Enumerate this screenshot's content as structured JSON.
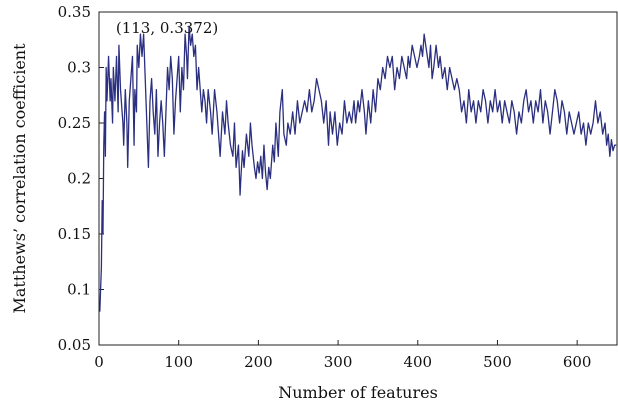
{
  "chart_data": {
    "type": "line",
    "title": "",
    "xlabel": "Number of features",
    "ylabel": "Matthews’ correlation coefficient",
    "xlim": [
      0,
      650
    ],
    "ylim": [
      0.05,
      0.35
    ],
    "x_ticks": [
      0,
      100,
      200,
      300,
      400,
      500,
      600
    ],
    "y_ticks": [
      0.05,
      0.1,
      0.15,
      0.2,
      0.25,
      0.3,
      0.35
    ],
    "y_tick_labels": [
      "0.05",
      "0.1",
      "0.15",
      "0.2",
      "0.25",
      "0.3",
      "0.35"
    ],
    "grid": false,
    "legend": "none",
    "line_color": "#2b2f7f",
    "annotation": {
      "text": "(113, 0.3372)",
      "x": 113,
      "y": 0.3372
    },
    "series": [
      {
        "points": [
          [
            1,
            0.08
          ],
          [
            2,
            0.1
          ],
          [
            3,
            0.12
          ],
          [
            4,
            0.18
          ],
          [
            5,
            0.15
          ],
          [
            6,
            0.23
          ],
          [
            7,
            0.26
          ],
          [
            8,
            0.22
          ],
          [
            9,
            0.3
          ],
          [
            10,
            0.27
          ],
          [
            12,
            0.31
          ],
          [
            14,
            0.27
          ],
          [
            15,
            0.29
          ],
          [
            17,
            0.25
          ],
          [
            18,
            0.3
          ],
          [
            20,
            0.27
          ],
          [
            22,
            0.31
          ],
          [
            24,
            0.26
          ],
          [
            25,
            0.32
          ],
          [
            27,
            0.28
          ],
          [
            28,
            0.27
          ],
          [
            30,
            0.25
          ],
          [
            31,
            0.23
          ],
          [
            33,
            0.28
          ],
          [
            35,
            0.25
          ],
          [
            36,
            0.21
          ],
          [
            38,
            0.27
          ],
          [
            40,
            0.29
          ],
          [
            42,
            0.31
          ],
          [
            44,
            0.23
          ],
          [
            45,
            0.28
          ],
          [
            47,
            0.26
          ],
          [
            48,
            0.32
          ],
          [
            50,
            0.3
          ],
          [
            52,
            0.33
          ],
          [
            54,
            0.31
          ],
          [
            56,
            0.33
          ],
          [
            58,
            0.29
          ],
          [
            59,
            0.27
          ],
          [
            60,
            0.25
          ],
          [
            62,
            0.21
          ],
          [
            64,
            0.27
          ],
          [
            66,
            0.29
          ],
          [
            68,
            0.26
          ],
          [
            70,
            0.24
          ],
          [
            72,
            0.28
          ],
          [
            74,
            0.22
          ],
          [
            76,
            0.25
          ],
          [
            78,
            0.27
          ],
          [
            80,
            0.25
          ],
          [
            82,
            0.22
          ],
          [
            84,
            0.26
          ],
          [
            86,
            0.3
          ],
          [
            88,
            0.28
          ],
          [
            90,
            0.31
          ],
          [
            92,
            0.29
          ],
          [
            94,
            0.24
          ],
          [
            96,
            0.27
          ],
          [
            98,
            0.29
          ],
          [
            100,
            0.31
          ],
          [
            102,
            0.26
          ],
          [
            104,
            0.3
          ],
          [
            106,
            0.28
          ],
          [
            108,
            0.33
          ],
          [
            110,
            0.31
          ],
          [
            111,
            0.29
          ],
          [
            113,
            0.3372
          ],
          [
            115,
            0.32
          ],
          [
            117,
            0.33
          ],
          [
            119,
            0.31
          ],
          [
            121,
            0.32
          ],
          [
            123,
            0.28
          ],
          [
            125,
            0.3
          ],
          [
            127,
            0.28
          ],
          [
            129,
            0.26
          ],
          [
            131,
            0.28
          ],
          [
            133,
            0.27
          ],
          [
            135,
            0.25
          ],
          [
            137,
            0.28
          ],
          [
            140,
            0.26
          ],
          [
            142,
            0.24
          ],
          [
            145,
            0.28
          ],
          [
            148,
            0.26
          ],
          [
            150,
            0.24
          ],
          [
            152,
            0.22
          ],
          [
            155,
            0.26
          ],
          [
            158,
            0.24
          ],
          [
            160,
            0.27
          ],
          [
            162,
            0.25
          ],
          [
            165,
            0.23
          ],
          [
            168,
            0.22
          ],
          [
            170,
            0.25
          ],
          [
            172,
            0.21
          ],
          [
            175,
            0.23
          ],
          [
            177,
            0.185
          ],
          [
            178,
            0.2
          ],
          [
            180,
            0.225
          ],
          [
            182,
            0.21
          ],
          [
            185,
            0.24
          ],
          [
            188,
            0.22
          ],
          [
            190,
            0.25
          ],
          [
            192,
            0.23
          ],
          [
            195,
            0.21
          ],
          [
            197,
            0.2
          ],
          [
            199,
            0.215
          ],
          [
            201,
            0.205
          ],
          [
            203,
            0.22
          ],
          [
            205,
            0.2
          ],
          [
            207,
            0.23
          ],
          [
            209,
            0.205
          ],
          [
            211,
            0.19
          ],
          [
            213,
            0.21
          ],
          [
            215,
            0.2
          ],
          [
            218,
            0.23
          ],
          [
            220,
            0.215
          ],
          [
            222,
            0.25
          ],
          [
            225,
            0.22
          ],
          [
            227,
            0.26
          ],
          [
            230,
            0.28
          ],
          [
            232,
            0.24
          ],
          [
            235,
            0.23
          ],
          [
            237,
            0.25
          ],
          [
            240,
            0.24
          ],
          [
            243,
            0.26
          ],
          [
            246,
            0.24
          ],
          [
            249,
            0.27
          ],
          [
            252,
            0.25
          ],
          [
            255,
            0.26
          ],
          [
            258,
            0.27
          ],
          [
            261,
            0.26
          ],
          [
            264,
            0.28
          ],
          [
            267,
            0.26
          ],
          [
            270,
            0.27
          ],
          [
            273,
            0.29
          ],
          [
            276,
            0.28
          ],
          [
            279,
            0.27
          ],
          [
            282,
            0.25
          ],
          [
            285,
            0.27
          ],
          [
            288,
            0.23
          ],
          [
            290,
            0.26
          ],
          [
            293,
            0.24
          ],
          [
            296,
            0.26
          ],
          [
            299,
            0.23
          ],
          [
            302,
            0.25
          ],
          [
            305,
            0.24
          ],
          [
            308,
            0.27
          ],
          [
            311,
            0.25
          ],
          [
            314,
            0.26
          ],
          [
            317,
            0.25
          ],
          [
            320,
            0.27
          ],
          [
            322,
            0.25
          ],
          [
            325,
            0.27
          ],
          [
            327,
            0.26
          ],
          [
            330,
            0.28
          ],
          [
            333,
            0.26
          ],
          [
            335,
            0.24
          ],
          [
            338,
            0.27
          ],
          [
            341,
            0.25
          ],
          [
            344,
            0.28
          ],
          [
            347,
            0.26
          ],
          [
            350,
            0.29
          ],
          [
            353,
            0.28
          ],
          [
            356,
            0.3
          ],
          [
            359,
            0.29
          ],
          [
            362,
            0.31
          ],
          [
            365,
            0.3
          ],
          [
            368,
            0.31
          ],
          [
            371,
            0.28
          ],
          [
            374,
            0.3
          ],
          [
            377,
            0.29
          ],
          [
            380,
            0.31
          ],
          [
            383,
            0.3
          ],
          [
            386,
            0.29
          ],
          [
            388,
            0.31
          ],
          [
            390,
            0.3
          ],
          [
            393,
            0.32
          ],
          [
            396,
            0.31
          ],
          [
            399,
            0.3
          ],
          [
            402,
            0.31
          ],
          [
            404,
            0.32
          ],
          [
            406,
            0.31
          ],
          [
            408,
            0.33
          ],
          [
            410,
            0.32
          ],
          [
            412,
            0.31
          ],
          [
            414,
            0.3
          ],
          [
            416,
            0.32
          ],
          [
            418,
            0.29
          ],
          [
            420,
            0.3
          ],
          [
            423,
            0.32
          ],
          [
            426,
            0.3
          ],
          [
            428,
            0.31
          ],
          [
            431,
            0.29
          ],
          [
            434,
            0.3
          ],
          [
            437,
            0.28
          ],
          [
            440,
            0.3
          ],
          [
            443,
            0.29
          ],
          [
            446,
            0.28
          ],
          [
            449,
            0.29
          ],
          [
            452,
            0.28
          ],
          [
            455,
            0.26
          ],
          [
            458,
            0.27
          ],
          [
            461,
            0.25
          ],
          [
            464,
            0.28
          ],
          [
            467,
            0.26
          ],
          [
            470,
            0.27
          ],
          [
            473,
            0.25
          ],
          [
            476,
            0.27
          ],
          [
            479,
            0.26
          ],
          [
            482,
            0.28
          ],
          [
            485,
            0.27
          ],
          [
            488,
            0.25
          ],
          [
            491,
            0.27
          ],
          [
            494,
            0.26
          ],
          [
            497,
            0.28
          ],
          [
            500,
            0.26
          ],
          [
            503,
            0.27
          ],
          [
            506,
            0.25
          ],
          [
            509,
            0.27
          ],
          [
            512,
            0.26
          ],
          [
            515,
            0.25
          ],
          [
            518,
            0.27
          ],
          [
            521,
            0.26
          ],
          [
            524,
            0.24
          ],
          [
            527,
            0.26
          ],
          [
            530,
            0.25
          ],
          [
            533,
            0.27
          ],
          [
            536,
            0.28
          ],
          [
            539,
            0.26
          ],
          [
            542,
            0.27
          ],
          [
            545,
            0.25
          ],
          [
            548,
            0.27
          ],
          [
            551,
            0.26
          ],
          [
            554,
            0.28
          ],
          [
            557,
            0.25
          ],
          [
            560,
            0.27
          ],
          [
            563,
            0.26
          ],
          [
            566,
            0.24
          ],
          [
            569,
            0.26
          ],
          [
            572,
            0.28
          ],
          [
            575,
            0.27
          ],
          [
            578,
            0.25
          ],
          [
            581,
            0.27
          ],
          [
            584,
            0.26
          ],
          [
            587,
            0.24
          ],
          [
            590,
            0.26
          ],
          [
            593,
            0.25
          ],
          [
            596,
            0.24
          ],
          [
            599,
            0.25
          ],
          [
            602,
            0.26
          ],
          [
            605,
            0.24
          ],
          [
            608,
            0.25
          ],
          [
            611,
            0.23
          ],
          [
            614,
            0.25
          ],
          [
            617,
            0.24
          ],
          [
            620,
            0.25
          ],
          [
            623,
            0.27
          ],
          [
            626,
            0.25
          ],
          [
            629,
            0.26
          ],
          [
            632,
            0.24
          ],
          [
            635,
            0.25
          ],
          [
            637,
            0.23
          ],
          [
            639,
            0.24
          ],
          [
            641,
            0.22
          ],
          [
            643,
            0.235
          ],
          [
            645,
            0.225
          ],
          [
            647,
            0.23
          ],
          [
            649,
            0.23
          ]
        ]
      }
    ]
  }
}
